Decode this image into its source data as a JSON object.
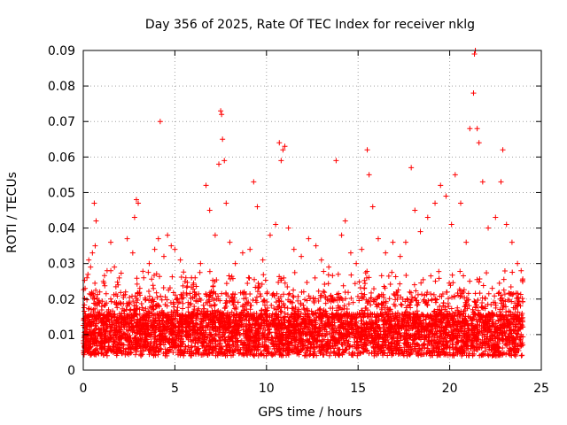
{
  "chart_data": {
    "type": "scatter",
    "title": "Day 356 of 2025, Rate Of TEC Index for receiver nklg",
    "xlabel": "GPS time / hours",
    "ylabel": "ROTI / TECUs",
    "xlim": [
      0,
      25
    ],
    "ylim": [
      0,
      0.09
    ],
    "xticks": [
      0,
      5,
      10,
      15,
      20,
      25
    ],
    "yticks": [
      0,
      0.01,
      0.02,
      0.03,
      0.04,
      0.05,
      0.06,
      0.07,
      0.08,
      0.09
    ],
    "xtick_labels": [
      "0",
      "5",
      "10",
      "15",
      "20",
      "25"
    ],
    "ytick_labels": [
      "0",
      "0.01",
      "0.02",
      "0.03",
      "0.04",
      "0.05",
      "0.06",
      "0.07",
      "0.08",
      "0.09"
    ],
    "grid": true,
    "marker": "plus",
    "color": "#ff0000",
    "x_range_of_data": [
      0,
      24
    ],
    "series": [
      {
        "values": [
          [
            0.1,
            0.023
          ],
          [
            0.2,
            0.026
          ],
          [
            0.3,
            0.031
          ],
          [
            0.4,
            0.029
          ],
          [
            0.5,
            0.033
          ],
          [
            0.6,
            0.047
          ],
          [
            0.65,
            0.035
          ],
          [
            0.7,
            0.042
          ],
          [
            0.9,
            0.022
          ],
          [
            1.1,
            0.025
          ],
          [
            1.3,
            0.028
          ],
          [
            1.5,
            0.036
          ],
          [
            1.7,
            0.029
          ],
          [
            1.9,
            0.024
          ],
          [
            2.2,
            0.021
          ],
          [
            2.4,
            0.037
          ],
          [
            2.7,
            0.033
          ],
          [
            2.8,
            0.043
          ],
          [
            2.9,
            0.048
          ],
          [
            3.0,
            0.047
          ],
          [
            3.3,
            0.026
          ],
          [
            3.6,
            0.03
          ],
          [
            3.9,
            0.034
          ],
          [
            4.1,
            0.037
          ],
          [
            4.2,
            0.07
          ],
          [
            4.4,
            0.032
          ],
          [
            4.6,
            0.038
          ],
          [
            4.8,
            0.035
          ],
          [
            5.0,
            0.034
          ],
          [
            5.3,
            0.031
          ],
          [
            5.6,
            0.026
          ],
          [
            6.0,
            0.024
          ],
          [
            6.4,
            0.03
          ],
          [
            6.7,
            0.052
          ],
          [
            6.9,
            0.045
          ],
          [
            7.2,
            0.038
          ],
          [
            7.4,
            0.058
          ],
          [
            7.5,
            0.073
          ],
          [
            7.55,
            0.072
          ],
          [
            7.6,
            0.065
          ],
          [
            7.7,
            0.059
          ],
          [
            7.8,
            0.047
          ],
          [
            8.0,
            0.036
          ],
          [
            8.3,
            0.03
          ],
          [
            8.7,
            0.033
          ],
          [
            9.1,
            0.034
          ],
          [
            9.3,
            0.053
          ],
          [
            9.5,
            0.046
          ],
          [
            9.8,
            0.031
          ],
          [
            10.2,
            0.038
          ],
          [
            10.5,
            0.041
          ],
          [
            10.7,
            0.064
          ],
          [
            10.8,
            0.059
          ],
          [
            10.9,
            0.062
          ],
          [
            11.0,
            0.063
          ],
          [
            11.2,
            0.04
          ],
          [
            11.5,
            0.034
          ],
          [
            11.9,
            0.032
          ],
          [
            12.3,
            0.037
          ],
          [
            12.7,
            0.035
          ],
          [
            13.0,
            0.031
          ],
          [
            13.4,
            0.029
          ],
          [
            13.8,
            0.059
          ],
          [
            14.1,
            0.038
          ],
          [
            14.3,
            0.042
          ],
          [
            14.6,
            0.033
          ],
          [
            14.9,
            0.03
          ],
          [
            15.2,
            0.034
          ],
          [
            15.5,
            0.062
          ],
          [
            15.6,
            0.055
          ],
          [
            15.8,
            0.046
          ],
          [
            16.1,
            0.037
          ],
          [
            16.5,
            0.033
          ],
          [
            16.9,
            0.036
          ],
          [
            17.3,
            0.032
          ],
          [
            17.6,
            0.036
          ],
          [
            17.9,
            0.057
          ],
          [
            18.1,
            0.045
          ],
          [
            18.4,
            0.039
          ],
          [
            18.8,
            0.043
          ],
          [
            19.2,
            0.047
          ],
          [
            19.5,
            0.052
          ],
          [
            19.8,
            0.049
          ],
          [
            20.1,
            0.041
          ],
          [
            20.3,
            0.055
          ],
          [
            20.6,
            0.047
          ],
          [
            20.9,
            0.036
          ],
          [
            21.1,
            0.068
          ],
          [
            21.3,
            0.078
          ],
          [
            21.35,
            0.089
          ],
          [
            21.4,
            0.09
          ],
          [
            21.5,
            0.068
          ],
          [
            21.6,
            0.064
          ],
          [
            21.8,
            0.053
          ],
          [
            22.1,
            0.04
          ],
          [
            22.5,
            0.043
          ],
          [
            22.8,
            0.053
          ],
          [
            22.9,
            0.062
          ],
          [
            23.1,
            0.041
          ],
          [
            23.4,
            0.036
          ],
          [
            23.7,
            0.03
          ],
          [
            23.9,
            0.028
          ]
        ]
      }
    ]
  }
}
